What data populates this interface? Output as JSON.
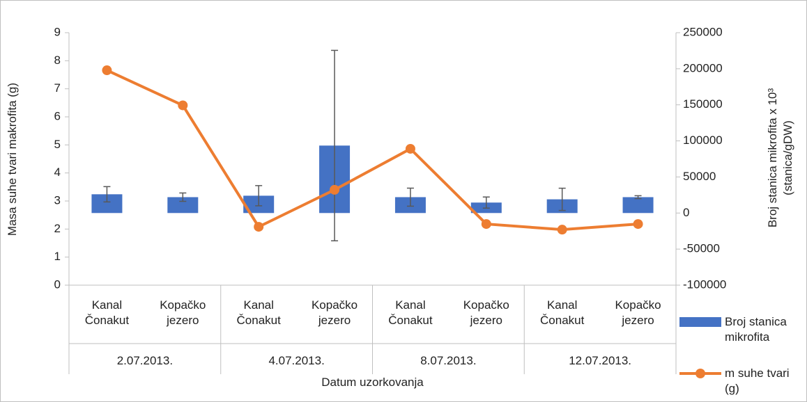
{
  "chart_data": {
    "type": "bar-line",
    "x_label": "Datum uzorkovanja",
    "y_label": "Masa suhe tvari makrofita (g)",
    "y2_label": "Broj stanica mikrofita x 10³ (stanica/gDW)",
    "categories": [
      "Kanal Čonakut",
      "Kopačko jezero",
      "Kanal Čonakut",
      "Kopačko jezero",
      "Kanal Čonakut",
      "Kopačko jezero",
      "Kanal Čonakut",
      "Kopačko jezero"
    ],
    "groups": [
      "2.07.2013.",
      "4.07.2013.",
      "8.07.2013.",
      "12.07.2013."
    ],
    "series": [
      {
        "name": "Broj stanica mikrofita",
        "type": "bar",
        "axis": "y2",
        "color": "#4472c4",
        "values": [
          26000,
          22000,
          24000,
          93500,
          22000,
          14500,
          19000,
          22000
        ],
        "errors": [
          10600,
          5800,
          14000,
          132000,
          12500,
          7700,
          15400,
          2000
        ]
      },
      {
        "name": "m suhe tvari (g)",
        "type": "line",
        "color": "#ed7d31",
        "values": [
          7.66,
          6.41,
          2.08,
          3.4,
          4.86,
          2.18,
          1.98,
          2.18
        ]
      }
    ],
    "ylim": [
      0,
      9
    ],
    "yticks": [
      0,
      1,
      2,
      3,
      4,
      5,
      6,
      7,
      8,
      9
    ],
    "y2lim": [
      -100000,
      250000
    ],
    "y2ticks": [
      -100000,
      -50000,
      0,
      50000,
      100000,
      150000,
      200000,
      250000
    ],
    "grid": false,
    "legend": "right"
  }
}
